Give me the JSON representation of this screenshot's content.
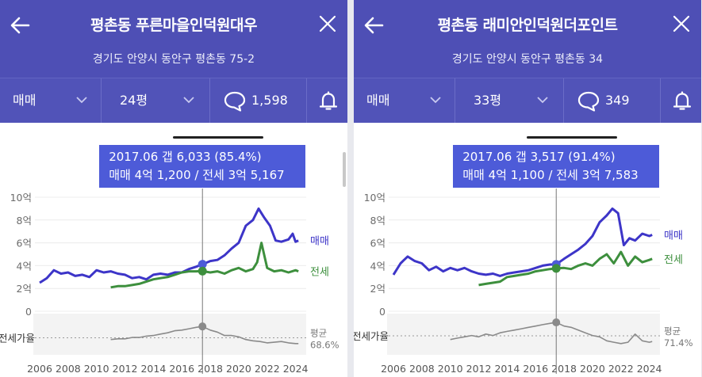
{
  "colors": {
    "header": "#4e4fb5",
    "tooltip": "#4d5bd8",
    "sale": "#3d35c8",
    "jeonse": "#3d8f3d",
    "ratio": "#8a8a8a"
  },
  "panels": [
    {
      "title": "평촌동 푸른마을인덕원대우",
      "address": "경기도 안양시 동안구 평촌동 75-2",
      "trade_type": "매매",
      "area": "24평",
      "comment_count": "1,598",
      "tooltip": {
        "line1": "2017.06  갭 6,033 (85.4%)",
        "line2": "매매 4억 1,200 / 전세 3억 5,167"
      },
      "legend": {
        "sale": "매매",
        "jeonse": "전세",
        "ratio": "전세가율",
        "avg_label": "평균",
        "avg_value": "68.6%"
      },
      "chart_data": {
        "type": "line",
        "y_ticks": [
          "10억",
          "8억",
          "6억",
          "4억",
          "2억",
          "0"
        ],
        "ylim": [
          0,
          10
        ],
        "x_ticks": [
          "2006",
          "2008",
          "2010",
          "2012",
          "2014",
          "2016",
          "2018",
          "2020",
          "2022",
          "2024"
        ],
        "xlim": [
          2006,
          2024.3
        ],
        "cursor_x": 2017.45,
        "series": [
          {
            "name": "매매",
            "x": [
              2006,
              2006.5,
              2007,
              2007.5,
              2008,
              2008.5,
              2009,
              2009.5,
              2010,
              2010.5,
              2011,
              2011.5,
              2012,
              2012.5,
              2013,
              2013.5,
              2014,
              2014.5,
              2015,
              2015.5,
              2016,
              2016.5,
              2017,
              2017.45,
              2018,
              2018.5,
              2019,
              2019.5,
              2020,
              2020.5,
              2021,
              2021.4,
              2021.8,
              2022.2,
              2022.6,
              2023,
              2023.5,
              2023.8,
              2024,
              2024.2
            ],
            "y": [
              2.5,
              2.9,
              3.6,
              3.3,
              3.4,
              3.1,
              3.2,
              3.0,
              3.6,
              3.4,
              3.5,
              3.3,
              3.2,
              2.9,
              3.0,
              2.8,
              3.2,
              3.3,
              3.2,
              3.4,
              3.4,
              3.7,
              3.9,
              4.12,
              4.4,
              4.5,
              4.9,
              5.5,
              6.0,
              7.5,
              8.0,
              9.0,
              8.2,
              7.5,
              6.2,
              6.1,
              6.3,
              6.8,
              6.1,
              6.2
            ]
          },
          {
            "name": "전세",
            "x": [
              2011,
              2011.5,
              2012,
              2012.5,
              2013,
              2013.5,
              2014,
              2014.5,
              2015,
              2015.5,
              2016,
              2016.5,
              2017,
              2017.45,
              2018,
              2018.5,
              2019,
              2019.5,
              2020,
              2020.5,
              2021,
              2021.3,
              2021.6,
              2022,
              2022.5,
              2023,
              2023.5,
              2024,
              2024.2
            ],
            "y": [
              2.1,
              2.2,
              2.2,
              2.3,
              2.4,
              2.6,
              2.8,
              2.9,
              3.0,
              3.2,
              3.4,
              3.5,
              3.5,
              3.52,
              3.4,
              3.5,
              3.3,
              3.6,
              3.8,
              3.5,
              3.7,
              4.3,
              6.0,
              3.8,
              3.5,
              3.6,
              3.4,
              3.6,
              3.5
            ]
          },
          {
            "name": "전세가율",
            "x": [
              2011,
              2011.5,
              2012,
              2012.5,
              2013,
              2013.5,
              2014,
              2014.5,
              2015,
              2015.5,
              2016,
              2016.5,
              2017,
              2017.45,
              2018,
              2018.5,
              2019,
              2019.5,
              2020,
              2020.5,
              2021,
              2021.5,
              2022,
              2022.5,
              2023,
              2023.5,
              2024,
              2024.2
            ],
            "y": [
              66,
              67,
              67,
              69,
              69,
              71,
              72,
              74,
              76,
              79,
              80,
              82,
              84,
              85.4,
              80,
              77,
              72,
              72,
              70,
              66,
              64,
              63,
              61,
              62,
              63,
              61,
              60,
              60
            ]
          }
        ]
      }
    },
    {
      "title": "평촌동 래미안인덕원더포인트",
      "address": "경기도 안양시 동안구 평촌동 34",
      "trade_type": "매매",
      "area": "33평",
      "comment_count": "349",
      "tooltip": {
        "line1": "2017.06  갭 3,517 (91.4%)",
        "line2": "매매 4억 1,100 / 전세 3억 7,583"
      },
      "legend": {
        "sale": "매매",
        "jeonse": "전세",
        "ratio": "전세가율",
        "avg_label": "평균",
        "avg_value": "71.4%"
      },
      "chart_data": {
        "type": "line",
        "y_ticks": [
          "10억",
          "8억",
          "6억",
          "4억",
          "2억",
          "0"
        ],
        "ylim": [
          0,
          10
        ],
        "x_ticks": [
          "2006",
          "2008",
          "2010",
          "2012",
          "2014",
          "2016",
          "2018",
          "2020",
          "2022",
          "2024"
        ],
        "xlim": [
          2006,
          2024.3
        ],
        "cursor_x": 2017.45,
        "series": [
          {
            "name": "매매",
            "x": [
              2006,
              2006.5,
              2007,
              2007.5,
              2008,
              2008.5,
              2009,
              2009.5,
              2010,
              2010.5,
              2011,
              2011.5,
              2012,
              2012.5,
              2013,
              2013.5,
              2014,
              2014.5,
              2015,
              2015.5,
              2016,
              2016.5,
              2017,
              2017.45,
              2018,
              2018.5,
              2019,
              2019.5,
              2020,
              2020.5,
              2021,
              2021.4,
              2021.8,
              2022.2,
              2022.6,
              2023,
              2023.5,
              2024,
              2024.2
            ],
            "y": [
              3.2,
              4.2,
              4.8,
              4.4,
              4.2,
              3.6,
              3.9,
              3.5,
              3.8,
              3.6,
              3.8,
              3.5,
              3.3,
              3.2,
              3.3,
              3.1,
              3.3,
              3.4,
              3.5,
              3.6,
              3.8,
              4.0,
              4.1,
              4.11,
              4.6,
              5.0,
              5.4,
              5.9,
              6.6,
              7.8,
              8.4,
              9.0,
              8.6,
              5.8,
              6.4,
              6.2,
              6.8,
              6.6,
              6.7
            ]
          },
          {
            "name": "전세",
            "x": [
              2012,
              2012.5,
              2013,
              2013.5,
              2014,
              2014.5,
              2015,
              2015.5,
              2016,
              2016.5,
              2017,
              2017.45,
              2018,
              2018.5,
              2019,
              2019.5,
              2020,
              2020.5,
              2021,
              2021.5,
              2022,
              2022.5,
              2023,
              2023.5,
              2024,
              2024.2
            ],
            "y": [
              2.3,
              2.4,
              2.5,
              2.6,
              3.0,
              3.1,
              3.2,
              3.3,
              3.5,
              3.6,
              3.7,
              3.76,
              3.8,
              3.7,
              4.0,
              4.2,
              4.0,
              4.6,
              5.0,
              4.2,
              5.2,
              4.0,
              4.8,
              4.3,
              4.5,
              4.6
            ]
          },
          {
            "name": "전세가율",
            "x": [
              2010,
              2010.5,
              2011,
              2011.5,
              2012,
              2012.5,
              2013,
              2013.5,
              2014,
              2014.5,
              2015,
              2015.5,
              2016,
              2016.5,
              2017,
              2017.45,
              2018,
              2018.5,
              2019,
              2019.5,
              2020,
              2020.5,
              2021,
              2021.5,
              2022,
              2022.5,
              2023,
              2023.5,
              2024,
              2024.2
            ],
            "y": [
              66,
              68,
              70,
              72,
              70,
              74,
              72,
              76,
              78,
              80,
              82,
              84,
              86,
              88,
              90,
              91.4,
              86,
              84,
              80,
              76,
              72,
              70,
              64,
              62,
              60,
              62,
              74,
              64,
              62,
              63
            ]
          }
        ]
      }
    }
  ]
}
